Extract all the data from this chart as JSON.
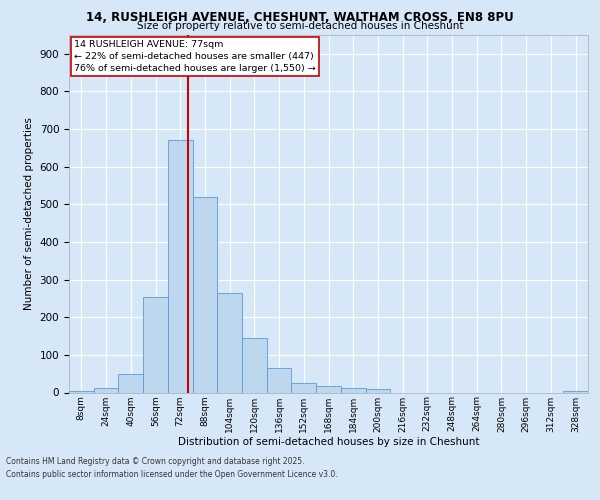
{
  "title1": "14, RUSHLEIGH AVENUE, CHESHUNT, WALTHAM CROSS, EN8 8PU",
  "title2": "Size of property relative to semi-detached houses in Cheshunt",
  "xlabel": "Distribution of semi-detached houses by size in Cheshunt",
  "ylabel": "Number of semi-detached properties",
  "categories": [
    "8sqm",
    "24sqm",
    "40sqm",
    "56sqm",
    "72sqm",
    "88sqm",
    "104sqm",
    "120sqm",
    "136sqm",
    "152sqm",
    "168sqm",
    "184sqm",
    "200sqm",
    "216sqm",
    "232sqm",
    "248sqm",
    "264sqm",
    "280sqm",
    "296sqm",
    "312sqm",
    "328sqm"
  ],
  "values": [
    5,
    13,
    50,
    255,
    670,
    520,
    265,
    145,
    65,
    25,
    18,
    13,
    10,
    0,
    0,
    0,
    0,
    0,
    0,
    0,
    3
  ],
  "bar_color": "#bdd7ee",
  "bar_edge_color": "#5b9bd5",
  "vline_color": "#cc0000",
  "annotation_title": "14 RUSHLEIGH AVENUE: 77sqm",
  "annotation_line1": "← 22% of semi-detached houses are smaller (447)",
  "annotation_line2": "76% of semi-detached houses are larger (1,550) →",
  "annotation_box_color": "#ffffff",
  "annotation_box_edge": "#cc0000",
  "bg_color": "#d6e8f7",
  "plot_bg_color": "#d6e8f7",
  "footer1": "Contains HM Land Registry data © Crown copyright and database right 2025.",
  "footer2": "Contains public sector information licensed under the Open Government Licence v3.0.",
  "ylim": [
    0,
    950
  ],
  "bin_width": 16,
  "property_size": 77,
  "grid_color": "#ffffff"
}
